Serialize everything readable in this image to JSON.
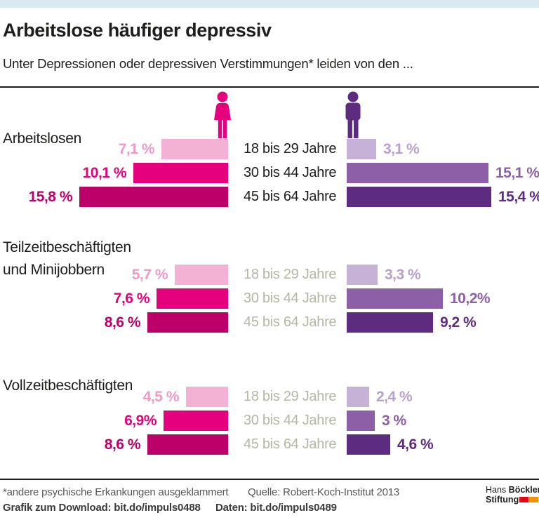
{
  "topbar": {
    "color": "#d9e9f2"
  },
  "header": {
    "title": "Arbeitslose häufiger depressiv",
    "subtitle": "Unter Depressionen oder depressiven Verstimmungen* leiden von den ..."
  },
  "chart_data": {
    "type": "bar",
    "orientation": "horizontal-mirrored",
    "unit": "%",
    "age_categories": [
      "18 bis 29 Jahre",
      "30 bis 44 Jahre",
      "45 bis 64 Jahre"
    ],
    "series": [
      "Frauen",
      "Männer"
    ],
    "groups": [
      {
        "label_lines": [
          "Arbeitslosen"
        ],
        "women": {
          "values": [
            7.1,
            10.1,
            15.8
          ],
          "labels": [
            "7,1 %",
            "10,1 %",
            "15,8 %"
          ]
        },
        "men": {
          "values": [
            3.1,
            15.1,
            15.4
          ],
          "labels": [
            "3,1 %",
            "15,1 %",
            "15,4 %"
          ]
        },
        "age_label_style": "dark"
      },
      {
        "label_lines": [
          "Teilzeitbeschäftigten",
          "und Minijobbern"
        ],
        "women": {
          "values": [
            5.7,
            7.6,
            8.6
          ],
          "labels": [
            "5,7 %",
            "7,6 %",
            "8,6 %"
          ]
        },
        "men": {
          "values": [
            3.3,
            10.2,
            9.2
          ],
          "labels": [
            "3,3 %",
            "10,2%",
            "9,2 %"
          ]
        },
        "age_label_style": "muted"
      },
      {
        "label_lines": [
          "Vollzeitbeschäftigten"
        ],
        "women": {
          "values": [
            4.5,
            6.9,
            8.6
          ],
          "labels": [
            "4,5 %",
            "6,9%",
            "8,6 %"
          ]
        },
        "men": {
          "values": [
            2.4,
            3.0,
            4.6
          ],
          "labels": [
            "2,4 %",
            "3 %",
            "4,6 %"
          ]
        },
        "age_label_style": "muted"
      }
    ],
    "colors": {
      "women_bars": [
        "#f3b1d3",
        "#e5007d",
        "#bd0069"
      ],
      "women_text": [
        "#ee9ac7",
        "#e5007d",
        "#bd0069"
      ],
      "men_bars": [
        "#c6b2d6",
        "#8d5fa6",
        "#5d2b80"
      ],
      "men_text": [
        "#b7a0cd",
        "#8d5fa6",
        "#5d2b80"
      ],
      "age_dark": "#1d1d1b",
      "age_muted": "#b6b6a6",
      "woman_icon": "#e5007d",
      "man_icon": "#5d2b80"
    },
    "legend_position": "none",
    "grid": false
  },
  "footer": {
    "footnote": "*andere psychische Erkankungen ausgeklammert",
    "source": "Quelle: Robert-Koch-Institut 2013",
    "download": "Grafik zum Download: bit.do/impuls0488",
    "data_link": "Daten: bit.do/impuls0489"
  },
  "logo": {
    "line1_regular": "Hans",
    "line1_bold": "Böckler",
    "line2_bold": "Stiftung",
    "block_red": "#e30613",
    "block_orange": "#f39200"
  }
}
